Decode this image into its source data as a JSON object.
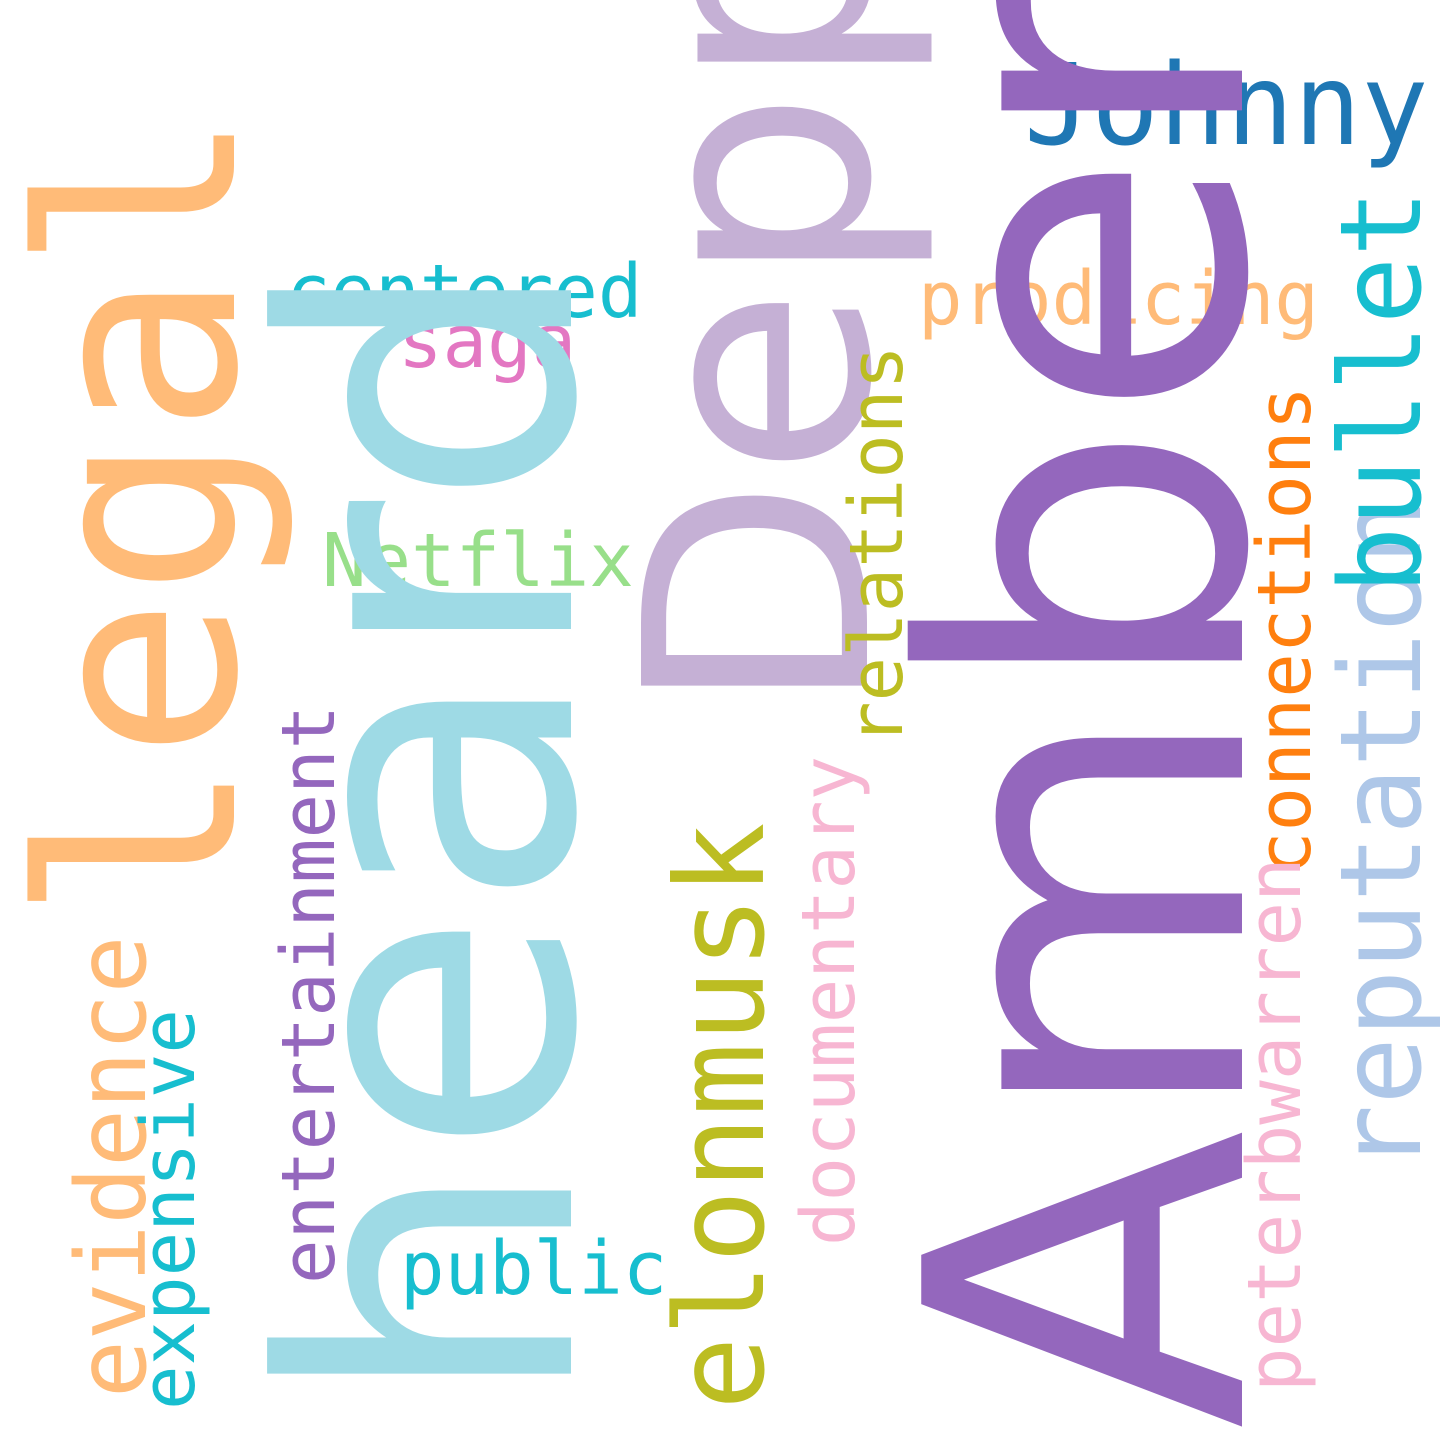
{
  "words": [
    {
      "key": "amber",
      "text": "Amber",
      "color": "#9467bd"
    },
    {
      "key": "heard",
      "text": "heard",
      "color": "#9edae5"
    },
    {
      "key": "depp",
      "text": "Depp",
      "color": "#c5b0d5"
    },
    {
      "key": "legal",
      "text": "legal",
      "color": "#ffbb78"
    },
    {
      "key": "johnny",
      "text": "Johnny",
      "color": "#1f77b4"
    },
    {
      "key": "elonmusk",
      "text": "elonmusk",
      "color": "#bcbd22"
    },
    {
      "key": "reputation",
      "text": "reputation",
      "color": "#aec7e8"
    },
    {
      "key": "bullet",
      "text": "bullet",
      "color": "#17becf"
    },
    {
      "key": "evidence",
      "text": "evidence",
      "color": "#ffbb78"
    },
    {
      "key": "expensive",
      "text": "expensive",
      "color": "#17becf"
    },
    {
      "key": "entertainment",
      "text": "entertainment",
      "color": "#9467bd"
    },
    {
      "key": "documentary",
      "text": "documentary",
      "color": "#f7b6d2"
    },
    {
      "key": "relations",
      "text": "relations",
      "color": "#bcbd22"
    },
    {
      "key": "connections",
      "text": "connections",
      "color": "#ff7f0e"
    },
    {
      "key": "peterbwarren",
      "text": "peterbwarren",
      "color": "#f7b6d2"
    },
    {
      "key": "prodicing",
      "text": "prodicing",
      "color": "#ffbb78"
    },
    {
      "key": "centered",
      "text": "centered",
      "color": "#17becf"
    },
    {
      "key": "saga",
      "text": "saga",
      "color": "#e377c2"
    },
    {
      "key": "netflix",
      "text": "Netflix",
      "color": "#98df8a"
    },
    {
      "key": "public",
      "text": "public",
      "color": "#17becf"
    }
  ]
}
